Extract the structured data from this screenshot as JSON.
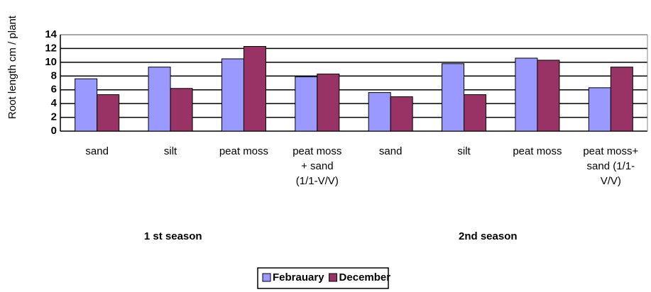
{
  "chart_data": {
    "type": "bar",
    "y_label": "Root length cm / plant",
    "categories": [
      "sand",
      "silt",
      "peat moss",
      "peat moss + sand (1/1-V/V)",
      "sand",
      "silt",
      "peat moss",
      "peat moss+ sand (1/1-V/V)"
    ],
    "groups": [
      "1 st season",
      "2nd season"
    ],
    "series": [
      {
        "name": "Febrauary",
        "color": "#9999ff",
        "values": [
          7.6,
          9.3,
          10.5,
          7.9,
          5.6,
          9.8,
          10.6,
          6.3
        ]
      },
      {
        "name": "December",
        "color": "#993366",
        "values": [
          5.3,
          6.2,
          12.3,
          8.3,
          5.0,
          5.3,
          10.3,
          9.3
        ]
      }
    ],
    "ylim": [
      0,
      14
    ],
    "yticks": [
      0,
      2,
      4,
      6,
      8,
      10,
      12,
      14
    ],
    "grid": true,
    "legend": "bottom"
  }
}
